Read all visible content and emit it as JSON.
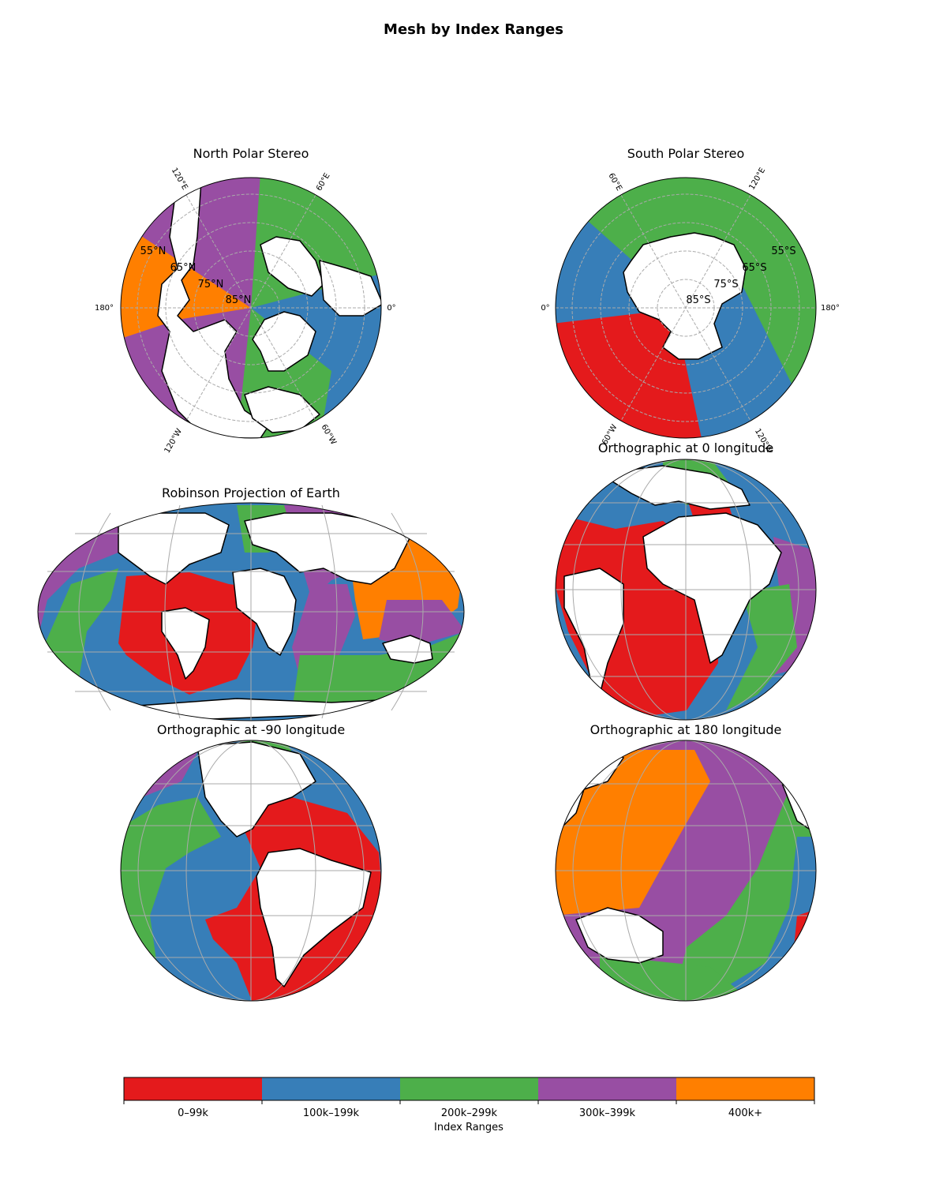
{
  "figure": {
    "title": "Mesh by Index Ranges"
  },
  "colors": {
    "range_0": "#e41a1c",
    "range_1": "#377eb8",
    "range_2": "#4daf4a",
    "range_3": "#984ea3",
    "range_4": "#ff7f00",
    "land": "#ffffff",
    "coastline": "#000000",
    "grid": "#aaaaaa"
  },
  "panels": {
    "north_polar": {
      "title": "North Polar Stereo",
      "lat_labels": [
        "55°N",
        "65°N",
        "75°N",
        "85°N"
      ],
      "lon_labels": [
        "120°E",
        "60°E",
        "180°",
        "0°",
        "120°W",
        "60°W"
      ]
    },
    "south_polar": {
      "title": "South Polar Stereo",
      "lat_labels": [
        "55°S",
        "65°S",
        "75°S",
        "85°S"
      ],
      "lon_labels": [
        "60°E",
        "120°E",
        "0°",
        "180°",
        "60°W",
        "120°W"
      ]
    },
    "robinson": {
      "title": "Robinson Projection of Earth"
    },
    "ortho_0": {
      "title": "Orthographic at 0 longitude",
      "central_longitude": 0
    },
    "ortho_m90": {
      "title": "Orthographic at -90 longitude",
      "central_longitude": -90
    },
    "ortho_180": {
      "title": "Orthographic at 180 longitude",
      "central_longitude": 180
    }
  },
  "colorbar": {
    "label": "Index Ranges",
    "ticks": [
      "0–99k",
      "100k–199k",
      "200k–299k",
      "300k–399k",
      "400k+"
    ]
  }
}
